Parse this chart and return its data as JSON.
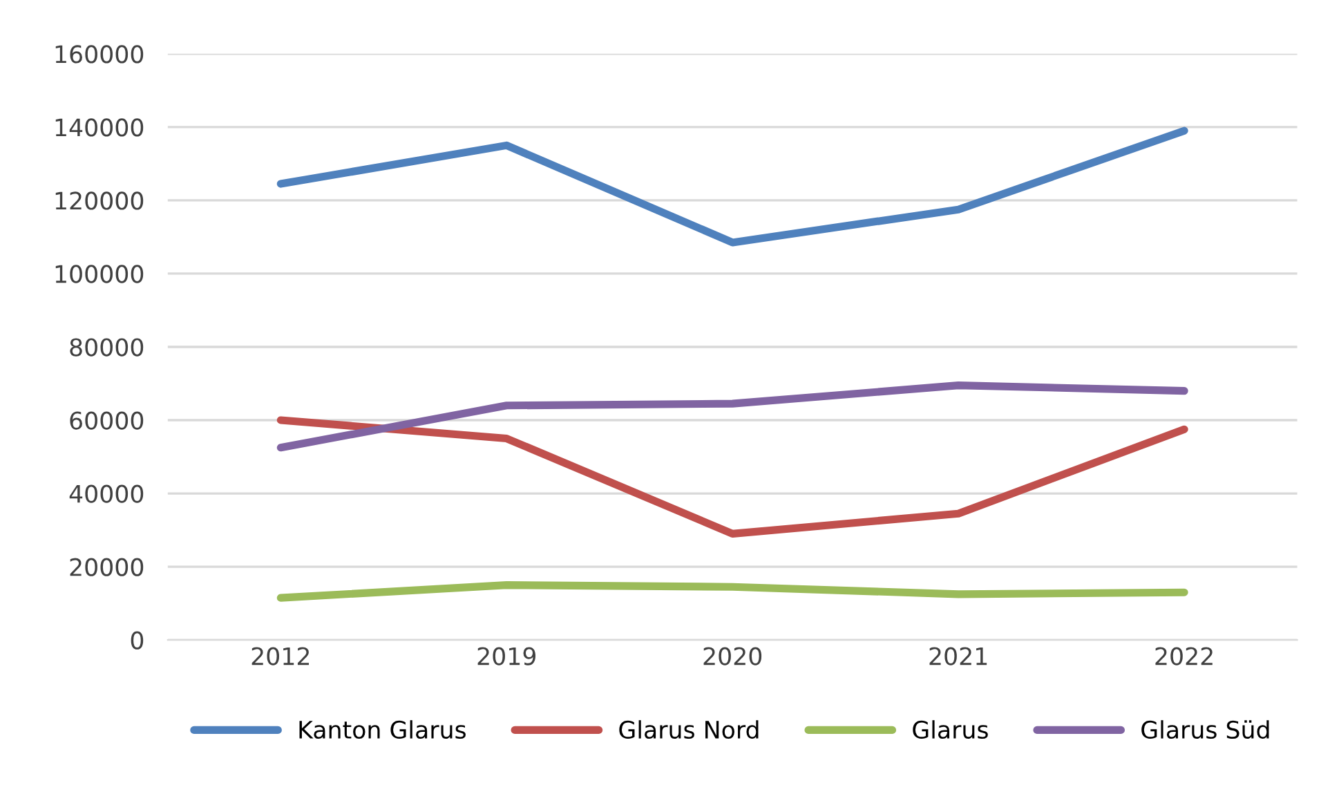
{
  "chart_data": {
    "type": "line",
    "categories": [
      "2012",
      "2019",
      "2020",
      "2021",
      "2022"
    ],
    "series": [
      {
        "name": "Kanton Glarus",
        "color": "#4f81bd",
        "values": [
          124500,
          135000,
          108500,
          117500,
          139000
        ]
      },
      {
        "name": "Glarus Nord",
        "color": "#c0504d",
        "values": [
          60000,
          55000,
          29000,
          34500,
          57500
        ]
      },
      {
        "name": "Glarus",
        "color": "#9bbb59",
        "values": [
          11500,
          15000,
          14500,
          12500,
          13000
        ]
      },
      {
        "name": "Glarus Süd",
        "color": "#8064a2",
        "values": [
          52500,
          64000,
          64500,
          69500,
          68000
        ]
      }
    ],
    "ylim": [
      0,
      160000
    ],
    "yticks": [
      0,
      20000,
      40000,
      60000,
      80000,
      100000,
      120000,
      140000,
      160000
    ],
    "grid": "y",
    "legend": "bottom",
    "marker": "none",
    "line_style": "solid"
  }
}
